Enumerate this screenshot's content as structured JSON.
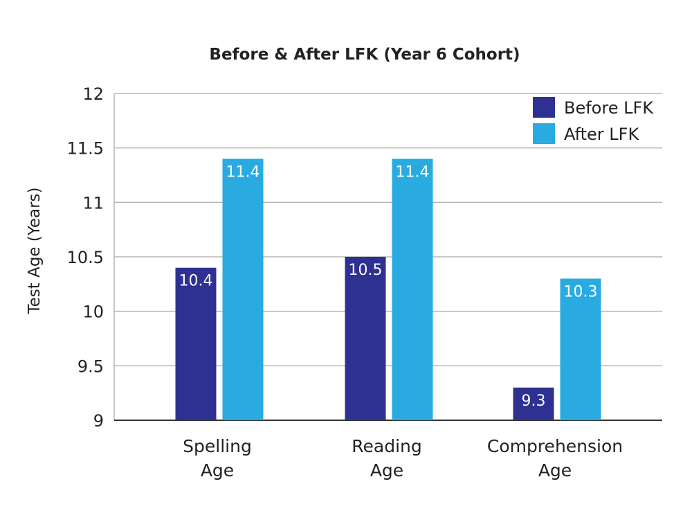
{
  "chart_data": {
    "type": "bar",
    "title": "Before & After LFK (Year 6 Cohort)",
    "ylabel": "Test Age (Years)",
    "xlabel": "",
    "ylim": [
      9,
      12
    ],
    "yticks": [
      "9",
      "9.5",
      "10",
      "10.5",
      "11",
      "11.5",
      "12"
    ],
    "categories": [
      [
        "Spelling",
        "Age"
      ],
      [
        "Reading",
        "Age"
      ],
      [
        "Comprehension",
        "Age"
      ]
    ],
    "series": [
      {
        "name": "Before LFK",
        "color": "#2e3192",
        "values": [
          10.4,
          10.5,
          9.3
        ],
        "labels": [
          "10.4",
          "10.5",
          "9.3"
        ]
      },
      {
        "name": "After LFK",
        "color": "#29abe2",
        "values": [
          11.4,
          11.4,
          10.3
        ],
        "labels": [
          "11.4",
          "11.4",
          "10.3"
        ]
      }
    ],
    "grid": true,
    "legend_position": "top-right"
  }
}
